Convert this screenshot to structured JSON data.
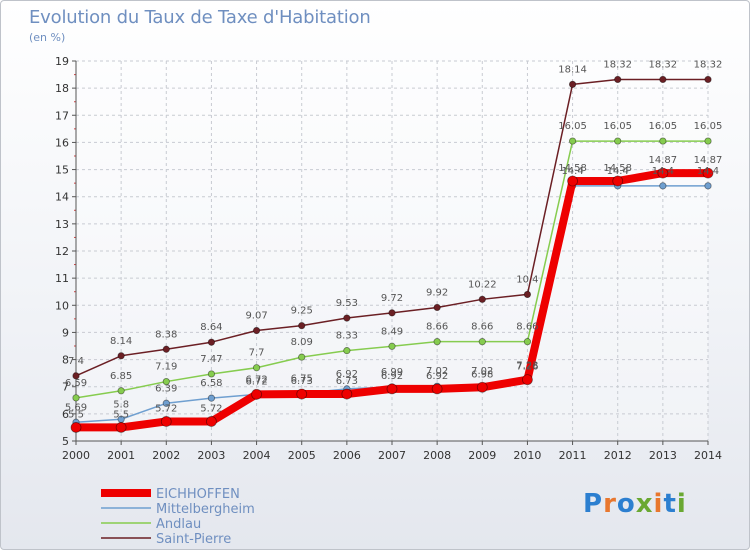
{
  "title": "Evolution du Taux de Taxe d'Habitation",
  "unit_label": "(en %)",
  "logo": {
    "text": "Proxiti",
    "colors": [
      "#2c7fd0",
      "#e8772e",
      "#6aa832"
    ]
  },
  "chart_data": {
    "type": "line",
    "title": "Evolution du Taux de Taxe d'Habitation",
    "ylabel": "(en %)",
    "xlabel": "",
    "ylim": [
      5,
      19
    ],
    "yticks": [
      5,
      6,
      7,
      8,
      9,
      10,
      11,
      12,
      13,
      14,
      15,
      16,
      17,
      18,
      19
    ],
    "grid": true,
    "legend_position": "bottom-left",
    "categories": [
      "2000",
      "2001",
      "2002",
      "2003",
      "2004",
      "2005",
      "2006",
      "2007",
      "2008",
      "2009",
      "2010",
      "2011",
      "2012",
      "2013",
      "2014"
    ],
    "series": [
      {
        "name": "Saint-Pierre",
        "color": "#6b1f24",
        "values": [
          7.4,
          8.14,
          8.38,
          8.64,
          9.07,
          9.25,
          9.53,
          9.72,
          9.92,
          10.22,
          10.4,
          18.14,
          18.32,
          18.32,
          18.32
        ],
        "labels": [
          "7.4",
          "8.14",
          "8.38",
          "8.64",
          "9.07",
          "9.25",
          "9.53",
          "9.72",
          "9.92",
          "10.22",
          "10.4",
          "18.14",
          "18.32",
          "18.32",
          "18.32"
        ]
      },
      {
        "name": "Andlau",
        "color": "#86cc4f",
        "values": [
          6.59,
          6.85,
          7.19,
          7.47,
          7.7,
          8.09,
          8.33,
          8.49,
          8.66,
          8.66,
          8.66,
          16.05,
          16.05,
          16.05,
          16.05
        ],
        "labels": [
          "6.59",
          "6.85",
          "7.19",
          "7.47",
          "7.7",
          "8.09",
          "8.33",
          "8.49",
          "8.66",
          "8.66",
          "8.66",
          "16.05",
          "16.05",
          "16.05",
          "16.05"
        ]
      },
      {
        "name": "Mittelbergheim",
        "color": "#6f9fd0",
        "values": [
          5.69,
          5.8,
          6.39,
          6.58,
          6.72,
          6.75,
          6.92,
          6.99,
          7.02,
          7.02,
          7.23,
          14.4,
          14.4,
          14.4,
          14.4
        ],
        "labels": [
          "5.69",
          "5.8",
          "6.39",
          "6.58",
          "6.72",
          "6.75",
          "6.92",
          "6.99",
          "7.02",
          "7.02",
          "7.23",
          "14.4",
          "14.4",
          "14.4",
          "14.4"
        ]
      },
      {
        "name": "EICHHOFFEN",
        "color": "#ee0000",
        "values": [
          5.5,
          5.5,
          5.72,
          5.72,
          6.72,
          6.73,
          6.73,
          6.92,
          6.92,
          6.98,
          7.26,
          14.58,
          14.58,
          14.87,
          14.87
        ],
        "labels": [
          "5.5",
          "5.5",
          "5.72",
          "5.72",
          "6.72",
          "6.73",
          "6.73",
          "6.92",
          "6.92",
          "6.98",
          "7.26",
          "14.58",
          "14.58",
          "14.87",
          "14.87"
        ]
      }
    ]
  }
}
